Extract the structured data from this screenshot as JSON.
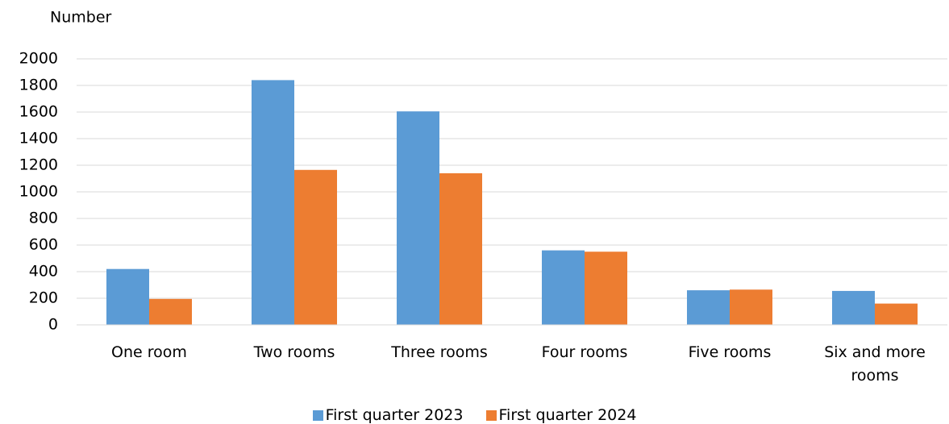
{
  "chart_data": {
    "type": "bar",
    "y_label": "Number",
    "categories": [
      "One room",
      "Two rooms",
      "Three rooms",
      "Four rooms",
      "Five rooms",
      "Six and more rooms"
    ],
    "series": [
      {
        "name": "First quarter 2023",
        "color": "#5b9bd5",
        "values": [
          420,
          1840,
          1605,
          560,
          260,
          255
        ]
      },
      {
        "name": "First quarter 2024",
        "color": "#ed7d31",
        "values": [
          195,
          1165,
          1140,
          550,
          265,
          160
        ]
      }
    ],
    "ylim": [
      0,
      2000
    ],
    "yticks": [
      0,
      200,
      400,
      600,
      800,
      1000,
      1200,
      1400,
      1600,
      1800,
      2000
    ],
    "grid": true,
    "legend": "bottom"
  }
}
